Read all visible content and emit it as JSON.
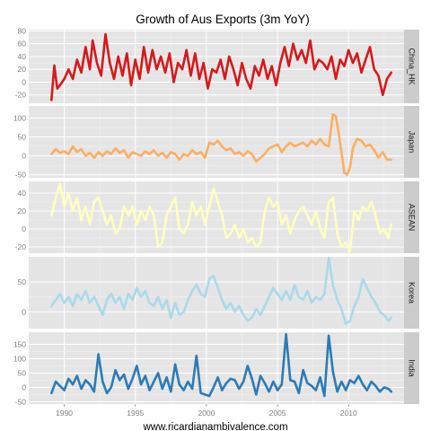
{
  "chart_data": {
    "type": "line",
    "title": "Growth of Aus Exports (3m YoY)",
    "xlabel": "www.ricardianambivalence.com",
    "ylabel": "",
    "xlim": [
      1987.5,
      2013.9
    ],
    "x_ticks": [
      1990,
      1995,
      2000,
      2005,
      2010
    ],
    "x_tick_labels": [
      "1990",
      "1995",
      "2000",
      "2005",
      "2010"
    ],
    "grid": true,
    "legend": "none",
    "panels": [
      {
        "name": "China_HK",
        "color": "#d7191c",
        "ylim": [
          -33,
          82
        ],
        "y_ticks": [
          -20,
          0,
          20,
          40,
          60,
          80
        ],
        "y_tick_labels": [
          "-20",
          "0",
          "20",
          "40",
          "60",
          "80"
        ],
        "x": [
          1989.1,
          1989.3,
          1989.5,
          1989.7,
          1990.0,
          1990.3,
          1990.6,
          1990.9,
          1991.2,
          1991.5,
          1991.8,
          1992.0,
          1992.3,
          1992.6,
          1992.9,
          1993.2,
          1993.5,
          1993.8,
          1994.1,
          1994.4,
          1994.7,
          1995.0,
          1995.3,
          1995.6,
          1995.9,
          1996.2,
          1996.5,
          1996.8,
          1997.1,
          1997.4,
          1997.7,
          1998.0,
          1998.3,
          1998.6,
          1998.9,
          1999.2,
          1999.5,
          1999.8,
          2000.1,
          2000.4,
          2000.7,
          2001.0,
          2001.3,
          2001.6,
          2001.9,
          2002.2,
          2002.5,
          2002.8,
          2003.1,
          2003.4,
          2003.7,
          2004.0,
          2004.3,
          2004.6,
          2004.9,
          2005.2,
          2005.5,
          2005.8,
          2006.1,
          2006.4,
          2006.7,
          2007.0,
          2007.3,
          2007.6,
          2007.9,
          2008.2,
          2008.5,
          2008.8,
          2009.1,
          2009.4,
          2009.7,
          2010.0,
          2010.3,
          2010.6,
          2010.9,
          2011.2,
          2011.5,
          2011.8,
          2012.1,
          2012.4,
          2012.7,
          2013.0
        ],
        "values": [
          -28,
          26,
          -10,
          -5,
          5,
          20,
          5,
          35,
          15,
          55,
          20,
          65,
          30,
          10,
          75,
          30,
          5,
          40,
          10,
          45,
          -5,
          35,
          5,
          55,
          15,
          50,
          20,
          40,
          15,
          45,
          0,
          30,
          20,
          50,
          10,
          45,
          5,
          30,
          -10,
          20,
          15,
          35,
          5,
          40,
          20,
          -5,
          30,
          5,
          -10,
          25,
          10,
          35,
          5,
          25,
          -5,
          30,
          55,
          25,
          60,
          35,
          50,
          30,
          65,
          20,
          35,
          30,
          20,
          40,
          5,
          35,
          25,
          50,
          30,
          45,
          15,
          35,
          55,
          20,
          10,
          -20,
          5,
          15
        ]
      },
      {
        "name": "Japan",
        "color": "#fdae61",
        "ylim": [
          -58,
          132
        ],
        "y_ticks": [
          -50,
          0,
          50,
          100
        ],
        "y_tick_labels": [
          "-50",
          "0",
          "50",
          "100"
        ],
        "x": [
          1989.1,
          1989.4,
          1989.7,
          1990.0,
          1990.3,
          1990.6,
          1990.9,
          1991.2,
          1991.5,
          1991.8,
          1992.1,
          1992.4,
          1992.7,
          1993.0,
          1993.3,
          1993.6,
          1993.9,
          1994.2,
          1994.5,
          1994.8,
          1995.1,
          1995.4,
          1995.7,
          1996.0,
          1996.3,
          1996.6,
          1996.9,
          1997.2,
          1997.5,
          1997.8,
          1998.1,
          1998.4,
          1998.7,
          1999.0,
          1999.3,
          1999.6,
          1999.9,
          2000.2,
          2000.5,
          2000.8,
          2001.1,
          2001.4,
          2001.7,
          2002.0,
          2002.3,
          2002.6,
          2002.9,
          2003.2,
          2003.5,
          2003.8,
          2004.1,
          2004.4,
          2004.7,
          2005.0,
          2005.3,
          2005.6,
          2005.9,
          2006.2,
          2006.5,
          2006.8,
          2007.1,
          2007.4,
          2007.7,
          2008.0,
          2008.3,
          2008.6,
          2008.9,
          2009.1,
          2009.3,
          2009.5,
          2009.7,
          2009.9,
          2010.1,
          2010.3,
          2010.6,
          2010.9,
          2011.2,
          2011.5,
          2011.8,
          2012.1,
          2012.4,
          2012.7,
          2013.0
        ],
        "values": [
          5,
          18,
          8,
          12,
          5,
          25,
          10,
          18,
          0,
          8,
          -5,
          10,
          0,
          12,
          5,
          20,
          8,
          15,
          -5,
          10,
          5,
          0,
          12,
          5,
          15,
          0,
          8,
          -5,
          10,
          5,
          -10,
          5,
          0,
          15,
          5,
          10,
          -5,
          35,
          30,
          40,
          25,
          15,
          20,
          5,
          10,
          0,
          12,
          5,
          -15,
          -5,
          5,
          20,
          25,
          30,
          10,
          25,
          35,
          25,
          30,
          35,
          25,
          40,
          30,
          45,
          30,
          25,
          110,
          105,
          60,
          10,
          -45,
          -50,
          -30,
          20,
          45,
          40,
          25,
          30,
          15,
          -5,
          10,
          -10,
          -10
        ]
      },
      {
        "name": "ASEAN",
        "color": "#ffffbf",
        "ylim": [
          -27,
          53
        ],
        "y_ticks": [
          -20,
          0,
          20,
          40
        ],
        "y_tick_labels": [
          "-20",
          "0",
          "20",
          "40"
        ],
        "x": [
          1989.1,
          1989.4,
          1989.7,
          1990.0,
          1990.3,
          1990.6,
          1990.9,
          1991.2,
          1991.5,
          1991.8,
          1992.1,
          1992.4,
          1992.7,
          1993.0,
          1993.3,
          1993.6,
          1993.9,
          1994.2,
          1994.5,
          1994.8,
          1995.1,
          1995.4,
          1995.7,
          1996.0,
          1996.3,
          1996.6,
          1996.9,
          1997.2,
          1997.5,
          1997.8,
          1998.1,
          1998.4,
          1998.7,
          1999.0,
          1999.3,
          1999.6,
          1999.9,
          2000.2,
          2000.5,
          2000.8,
          2001.1,
          2001.4,
          2001.7,
          2002.0,
          2002.3,
          2002.6,
          2002.9,
          2003.2,
          2003.5,
          2003.8,
          2004.1,
          2004.4,
          2004.7,
          2005.0,
          2005.3,
          2005.6,
          2005.9,
          2006.2,
          2006.5,
          2006.8,
          2007.1,
          2007.4,
          2007.7,
          2008.0,
          2008.3,
          2008.6,
          2008.9,
          2009.2,
          2009.5,
          2009.8,
          2010.1,
          2010.4,
          2010.7,
          2011.0,
          2011.3,
          2011.6,
          2011.9,
          2012.2,
          2012.5,
          2012.8,
          2013.0
        ],
        "values": [
          15,
          35,
          50,
          25,
          40,
          20,
          35,
          10,
          25,
          5,
          30,
          35,
          20,
          5,
          15,
          -5,
          0,
          25,
          15,
          25,
          5,
          20,
          10,
          25,
          15,
          -20,
          -15,
          15,
          25,
          35,
          0,
          -5,
          5,
          30,
          15,
          25,
          5,
          25,
          45,
          30,
          15,
          -10,
          -5,
          5,
          -10,
          0,
          -15,
          -10,
          -20,
          -15,
          20,
          35,
          25,
          30,
          5,
          15,
          -5,
          10,
          20,
          25,
          15,
          5,
          20,
          0,
          -10,
          30,
          35,
          -5,
          -20,
          -15,
          -25,
          20,
          10,
          25,
          20,
          30,
          15,
          -5,
          0,
          -10,
          5
        ]
      },
      {
        "name": "Korea",
        "color": "#abd9e9",
        "ylim": [
          -28,
          92
        ],
        "y_ticks": [
          0,
          50
        ],
        "y_tick_labels": [
          "0",
          "50"
        ],
        "x": [
          1989.1,
          1989.4,
          1989.7,
          1990.0,
          1990.3,
          1990.6,
          1990.9,
          1991.2,
          1991.5,
          1991.8,
          1992.1,
          1992.4,
          1992.7,
          1993.0,
          1993.3,
          1993.6,
          1993.9,
          1994.2,
          1994.5,
          1994.8,
          1995.1,
          1995.4,
          1995.7,
          1996.0,
          1996.3,
          1996.6,
          1996.9,
          1997.2,
          1997.5,
          1997.8,
          1998.1,
          1998.4,
          1998.7,
          1999.0,
          1999.3,
          1999.6,
          1999.9,
          2000.2,
          2000.5,
          2000.8,
          2001.1,
          2001.4,
          2001.7,
          2002.0,
          2002.3,
          2002.6,
          2002.9,
          2003.2,
          2003.5,
          2003.8,
          2004.1,
          2004.4,
          2004.7,
          2005.0,
          2005.3,
          2005.6,
          2005.9,
          2006.2,
          2006.5,
          2006.8,
          2007.1,
          2007.4,
          2007.7,
          2008.0,
          2008.3,
          2008.6,
          2008.9,
          2009.2,
          2009.5,
          2009.8,
          2010.1,
          2010.4,
          2010.7,
          2011.0,
          2011.3,
          2011.6,
          2011.9,
          2012.2,
          2012.5,
          2012.8,
          2013.0
        ],
        "values": [
          10,
          20,
          30,
          15,
          25,
          10,
          30,
          20,
          35,
          15,
          25,
          10,
          -5,
          20,
          30,
          15,
          25,
          5,
          30,
          20,
          40,
          25,
          35,
          15,
          10,
          25,
          5,
          20,
          -10,
          15,
          -5,
          0,
          20,
          35,
          45,
          30,
          25,
          55,
          60,
          40,
          20,
          5,
          15,
          0,
          10,
          -5,
          -15,
          -10,
          5,
          -5,
          10,
          25,
          40,
          30,
          20,
          35,
          20,
          45,
          25,
          20,
          35,
          15,
          25,
          20,
          30,
          90,
          45,
          20,
          5,
          -20,
          -15,
          10,
          25,
          55,
          40,
          25,
          15,
          0,
          -5,
          -15,
          -10
        ]
      },
      {
        "name": "India",
        "color": "#2c7bb6",
        "ylim": [
          -58,
          192
        ],
        "y_ticks": [
          -50,
          0,
          50,
          100,
          150
        ],
        "y_tick_labels": [
          "-50",
          "0",
          "50",
          "100",
          "150"
        ],
        "x": [
          1989.1,
          1989.4,
          1989.7,
          1990.0,
          1990.3,
          1990.6,
          1990.9,
          1991.2,
          1991.5,
          1991.8,
          1992.1,
          1992.4,
          1992.7,
          1993.0,
          1993.3,
          1993.6,
          1993.9,
          1994.2,
          1994.5,
          1994.8,
          1995.1,
          1995.4,
          1995.7,
          1996.0,
          1996.3,
          1996.6,
          1996.9,
          1997.2,
          1997.5,
          1997.8,
          1998.1,
          1998.4,
          1998.7,
          1999.0,
          1999.3,
          1999.6,
          1999.9,
          2000.2,
          2000.5,
          2000.8,
          2001.1,
          2001.4,
          2001.7,
          2002.0,
          2002.3,
          2002.6,
          2002.9,
          2003.2,
          2003.5,
          2003.8,
          2004.1,
          2004.4,
          2004.7,
          2005.0,
          2005.3,
          2005.6,
          2005.9,
          2006.2,
          2006.5,
          2006.8,
          2007.1,
          2007.4,
          2007.7,
          2008.0,
          2008.3,
          2008.6,
          2008.9,
          2009.2,
          2009.5,
          2009.8,
          2010.1,
          2010.4,
          2010.7,
          2011.0,
          2011.3,
          2011.6,
          2011.9,
          2012.2,
          2012.5,
          2012.8,
          2013.0
        ],
        "values": [
          -20,
          20,
          5,
          -10,
          30,
          10,
          40,
          -5,
          25,
          10,
          -15,
          115,
          20,
          -20,
          0,
          60,
          25,
          45,
          -5,
          30,
          75,
          10,
          40,
          -10,
          20,
          50,
          -5,
          35,
          -15,
          80,
          10,
          -10,
          20,
          -5,
          110,
          -20,
          -25,
          -30,
          0,
          35,
          -10,
          15,
          30,
          25,
          -5,
          20,
          75,
          30,
          -25,
          40,
          15,
          -15,
          20,
          -10,
          10,
          185,
          25,
          20,
          -20,
          60,
          15,
          5,
          -10,
          35,
          -30,
          180,
          55,
          -15,
          20,
          -10,
          25,
          15,
          40,
          10,
          -10,
          20,
          5,
          -15,
          0,
          -5,
          -15
        ]
      }
    ]
  }
}
